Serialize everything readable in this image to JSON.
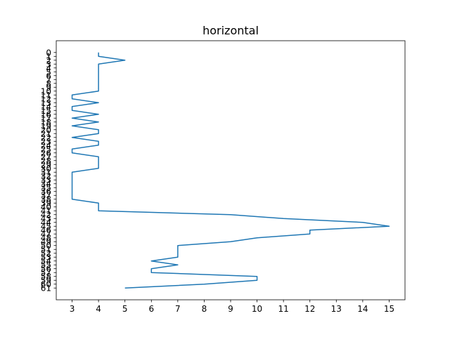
{
  "chart_data": {
    "type": "line",
    "title": "horizontal",
    "xlabel": "",
    "ylabel": "",
    "orientation": "horizontal",
    "y_inverted": true,
    "grid": false,
    "xlim": [
      2.4,
      15.6
    ],
    "ylim": [
      64.05,
      -3.05
    ],
    "xticks": [
      3,
      4,
      5,
      6,
      7,
      8,
      9,
      10,
      11,
      12,
      13,
      14,
      15
    ],
    "yticks": [
      0,
      1,
      2,
      3,
      4,
      5,
      6,
      7,
      8,
      9,
      10,
      11,
      12,
      13,
      14,
      15,
      16,
      17,
      18,
      19,
      20,
      21,
      22,
      23,
      24,
      25,
      26,
      27,
      28,
      29,
      30,
      31,
      32,
      33,
      34,
      35,
      36,
      37,
      38,
      39,
      40,
      41,
      42,
      43,
      44,
      45,
      46,
      47,
      48,
      49,
      50,
      51,
      52,
      53,
      54,
      55,
      56,
      57,
      58,
      59,
      60,
      61
    ],
    "color": "#1f77b4",
    "series": [
      {
        "y": [
          0,
          1,
          2,
          3,
          4,
          5,
          6,
          7,
          8,
          9,
          10,
          11,
          12,
          13,
          14,
          15,
          16,
          17,
          18,
          19,
          20,
          21,
          22,
          23,
          24,
          25,
          26,
          27,
          28,
          29,
          30,
          31,
          32,
          33,
          34,
          35,
          36,
          37,
          38,
          39,
          40,
          41,
          42,
          43,
          44,
          45,
          46,
          47,
          48,
          49,
          50,
          51,
          52,
          53,
          54,
          55,
          56,
          57,
          58,
          59,
          60,
          61
        ],
        "x": [
          4,
          4,
          5,
          4,
          4,
          4,
          4,
          4,
          4,
          4,
          4,
          3,
          3,
          4,
          3,
          3,
          4,
          3,
          4,
          3,
          4,
          4,
          3,
          4,
          4,
          3,
          3,
          4,
          4,
          4,
          4,
          3,
          3,
          3,
          3,
          3,
          3,
          3,
          3,
          4,
          4,
          4,
          9,
          11,
          14,
          15,
          12,
          12,
          10,
          9,
          7,
          7,
          7,
          7,
          6,
          7,
          6,
          6,
          10,
          10,
          8,
          5
        ]
      }
    ]
  }
}
